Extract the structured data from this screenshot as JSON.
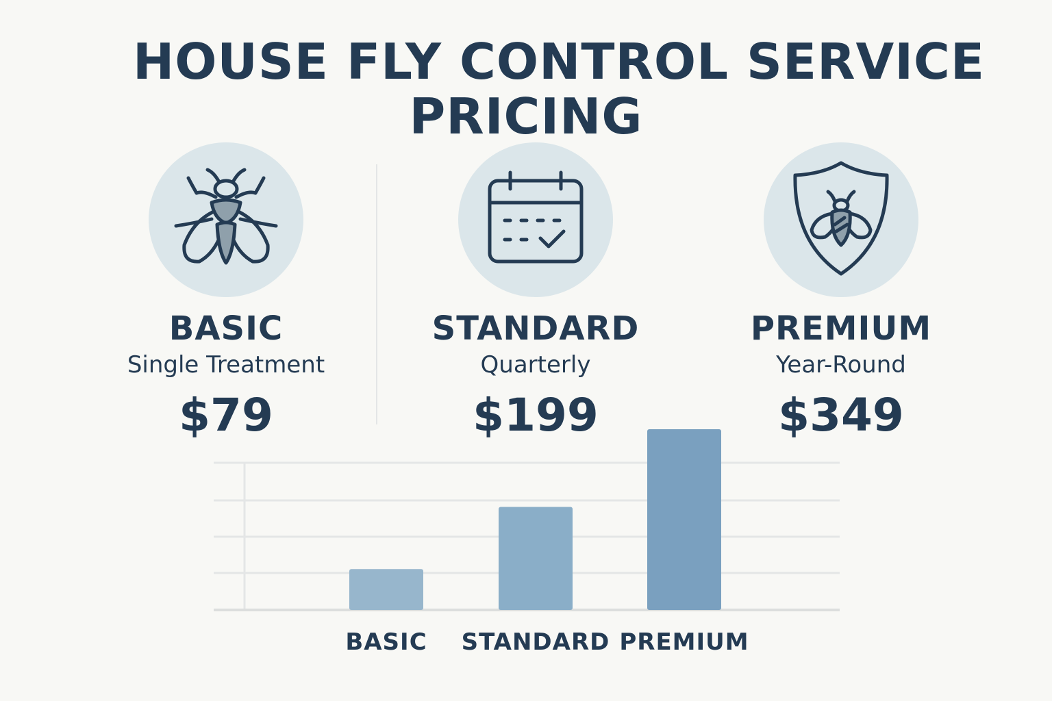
{
  "title": {
    "line1": "HOUSE FLY CONTROL SERVICE",
    "line2": "PRICING"
  },
  "plans": [
    {
      "name": "BASIC",
      "subtitle": "Single Treatment",
      "price": "$79",
      "icon": "fly-icon"
    },
    {
      "name": "STANDARD",
      "subtitle": "Quarterly",
      "price": "$199",
      "icon": "calendar-check-icon"
    },
    {
      "name": "PREMIUM",
      "subtitle": "Year-Round",
      "price": "$349",
      "icon": "shield-bug-icon"
    }
  ],
  "colors": {
    "text": "#243b53",
    "icon_bg": "#dbe6ea",
    "bar_basic": "#97b6cc",
    "bar_standard": "#8aaec8",
    "bar_premium": "#7aa0bf",
    "grid": "#e4e6e6"
  },
  "chart_data": {
    "type": "bar",
    "categories": [
      "BASIC",
      "STANDARD",
      "PREMIUM"
    ],
    "values": [
      79,
      199,
      349
    ],
    "title": "",
    "xlabel": "",
    "ylabel": "",
    "ylim": [
      0,
      349
    ],
    "grid": true,
    "legend": "none"
  }
}
